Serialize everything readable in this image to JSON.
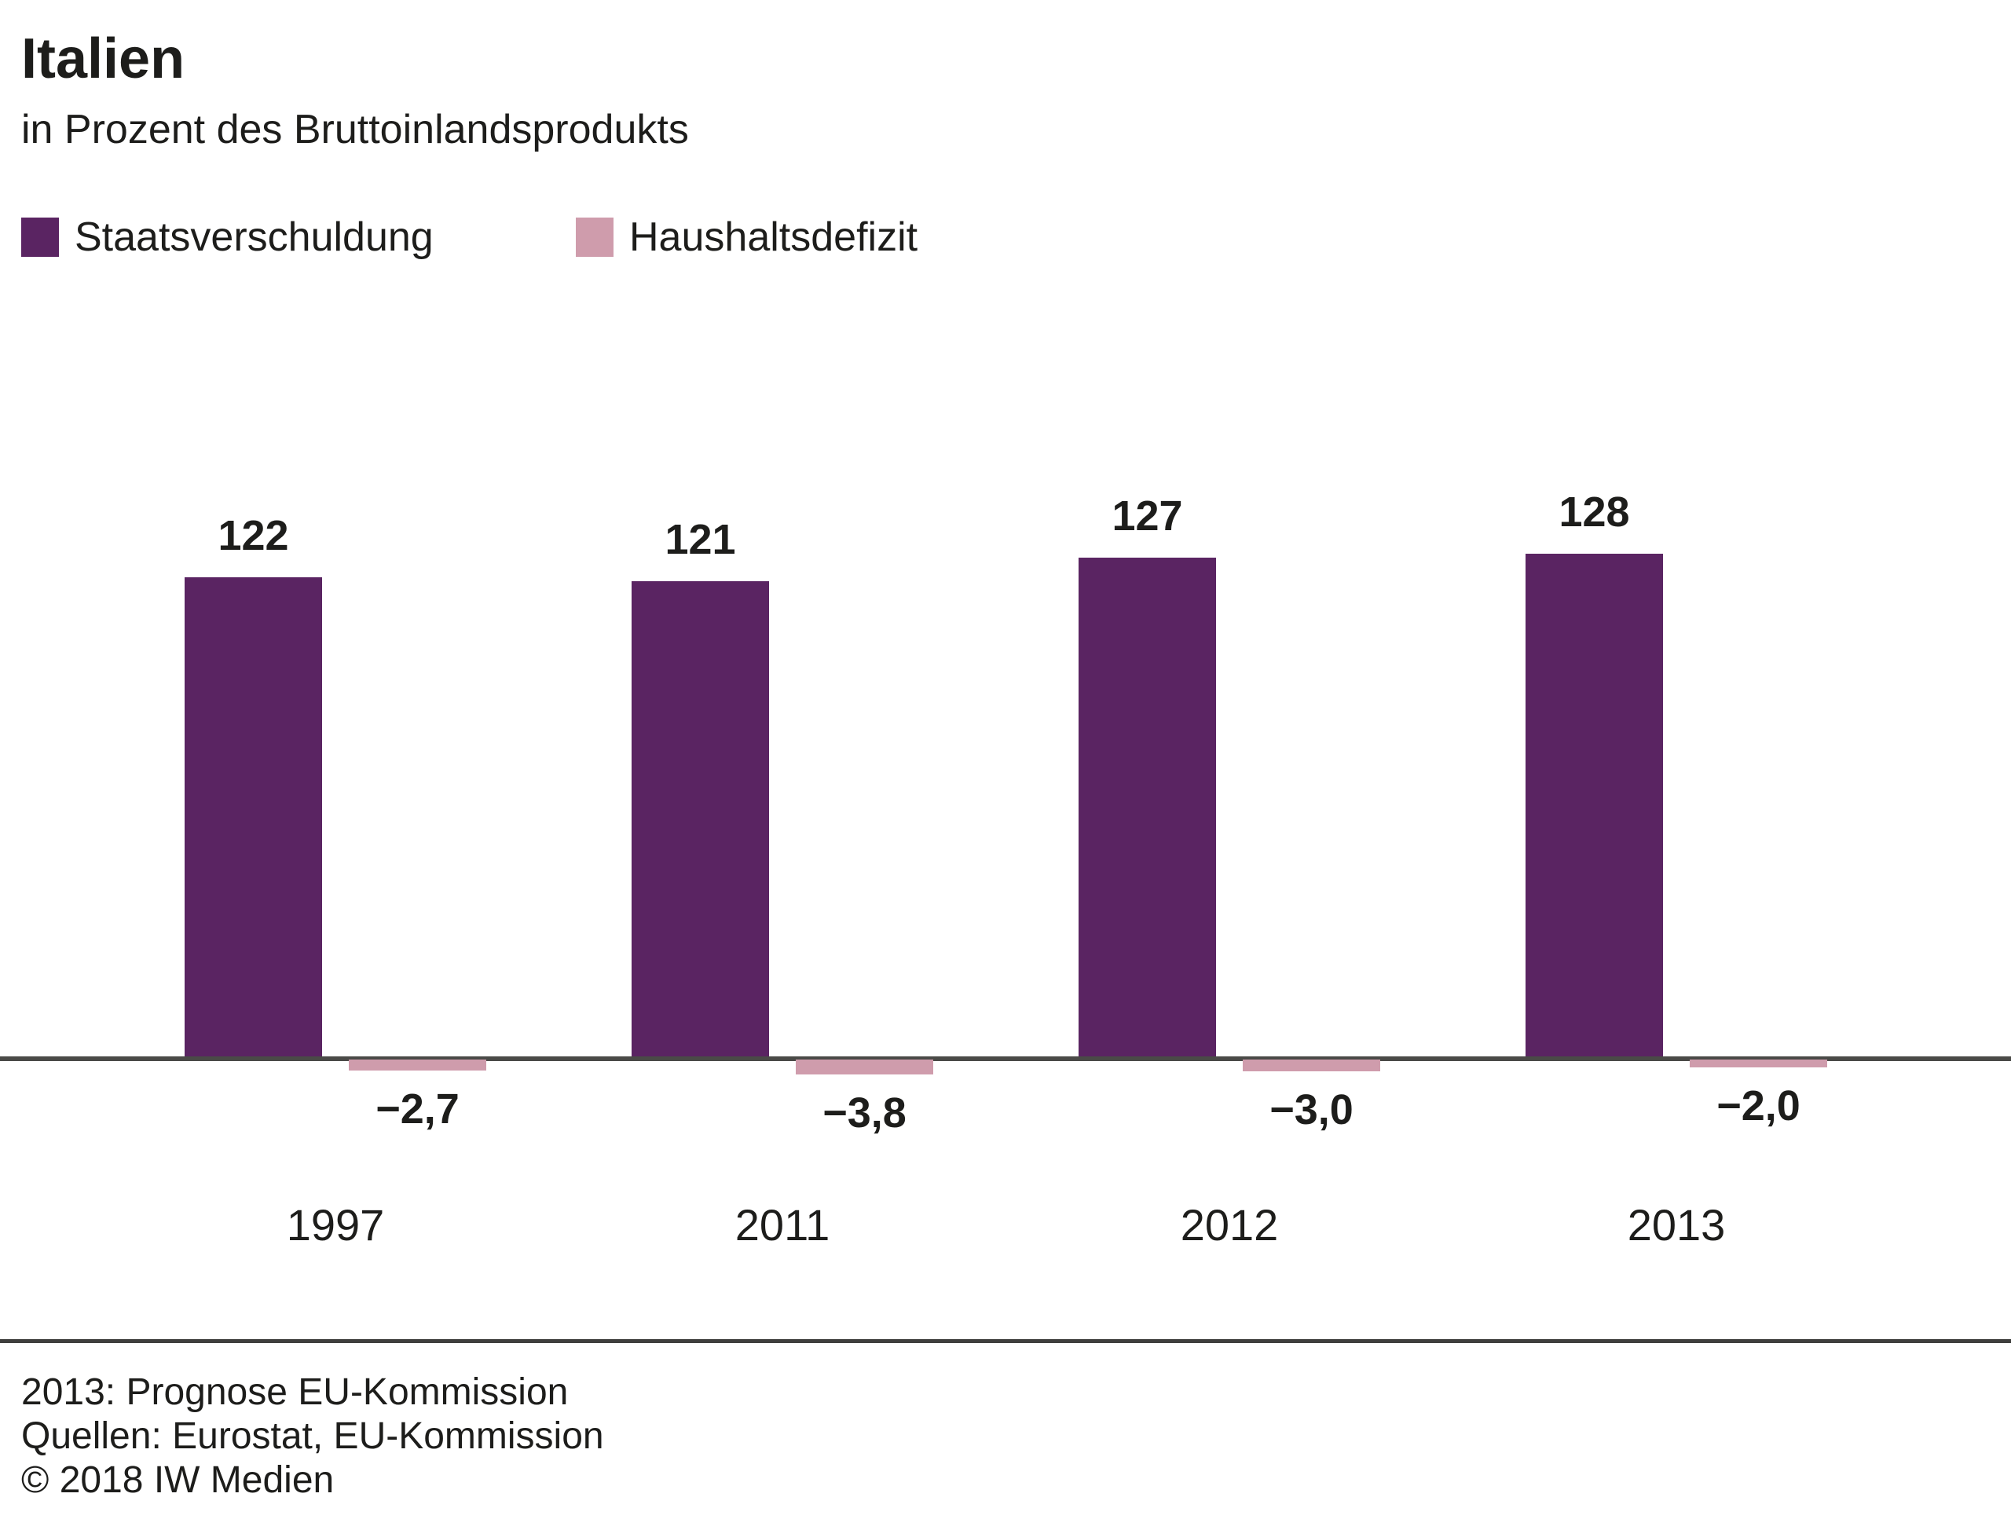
{
  "header": {
    "title": "Italien",
    "subtitle": "in Prozent des Bruttoinlandsprodukts"
  },
  "legend": {
    "items": [
      {
        "label": "Staatsverschuldung",
        "color": "#5a2462"
      },
      {
        "label": "Haushaltsdefizit",
        "color": "#cf9cac"
      }
    ]
  },
  "chart_data": {
    "type": "bar",
    "title": "Italien",
    "subtitle": "in Prozent des Bruttoinlandsprodukts",
    "categories": [
      "1997",
      "2011",
      "2012",
      "2013"
    ],
    "series": [
      {
        "name": "Staatsverschuldung",
        "color": "#5a2462",
        "values": [
          122,
          121,
          127,
          128
        ],
        "value_labels": [
          "122",
          "121",
          "127",
          "128"
        ]
      },
      {
        "name": "Haushaltsdefizit",
        "color": "#cf9cac",
        "values": [
          -2.7,
          -3.8,
          -3.0,
          -2.0
        ],
        "value_labels": [
          "−2,7",
          "−3,8",
          "−3,0",
          "−2,0"
        ]
      }
    ],
    "ylim": [
      -4,
      135
    ],
    "grid": false,
    "legend_position": "top-left",
    "baseline": 0,
    "axis_color": "#4a4a47"
  },
  "footer": {
    "note": "2013: Prognose EU-Kommission",
    "sources": "Quellen: Eurostat, EU-Kommission",
    "copyright": "© 2018 IW Medien"
  },
  "colors": {
    "debt": "#5a2462",
    "deficit": "#cf9cac",
    "text": "#1d1d1b",
    "axis": "#4a4a47",
    "background": "#ffffff"
  }
}
